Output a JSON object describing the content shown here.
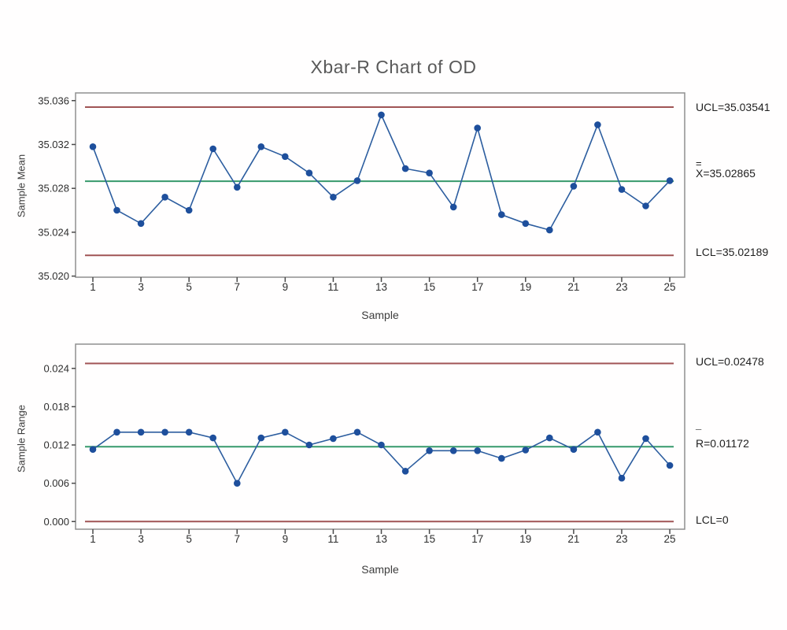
{
  "title": "Xbar-R Chart of OD",
  "colors": {
    "limit_line": "#a05455",
    "center_line": "#37996c",
    "series_line": "#2c5d9f",
    "marker": "#1e4f9c",
    "plot_border": "#8f8f8f",
    "tick": "#4a4a4a",
    "tick_text": "#2e2e2e",
    "title_text": "#595959"
  },
  "chart_data": [
    {
      "type": "line",
      "name": "xbar-chart",
      "ylabel": "Sample Mean",
      "xlabel": "Sample",
      "legend_position": "none",
      "grid": false,
      "samples": [
        1,
        2,
        3,
        4,
        5,
        6,
        7,
        8,
        9,
        10,
        11,
        12,
        13,
        14,
        15,
        16,
        17,
        18,
        19,
        20,
        21,
        22,
        23,
        24,
        25
      ],
      "values": [
        35.0318,
        35.026,
        35.0248,
        35.0272,
        35.026,
        35.0316,
        35.0281,
        35.0318,
        35.0309,
        35.0294,
        35.0272,
        35.0287,
        35.0347,
        35.0298,
        35.0294,
        35.0263,
        35.0335,
        35.0256,
        35.0248,
        35.0242,
        35.0282,
        35.0338,
        35.0279,
        35.0264,
        35.0287
      ],
      "ucl": 35.03541,
      "center": 35.02865,
      "lcl": 35.02189,
      "ylim": [
        35.0199,
        35.0367
      ],
      "xlim": [
        0.28,
        25.62
      ],
      "ytick_values": [
        35.02,
        35.024,
        35.028,
        35.032,
        35.036
      ],
      "ytick_labels": [
        "35.020",
        "35.024",
        "35.028",
        "35.032",
        "35.036"
      ],
      "xticks": [
        1,
        3,
        5,
        7,
        9,
        11,
        13,
        15,
        17,
        19,
        21,
        23,
        25
      ],
      "annotations": {
        "ucl": "UCL=35.03541",
        "center_bar": "=",
        "center": "X=35.02865",
        "lcl": "LCL=35.02189"
      }
    },
    {
      "type": "line",
      "name": "range-chart",
      "ylabel": "Sample Range",
      "xlabel": "Sample",
      "legend_position": "none",
      "grid": false,
      "samples": [
        1,
        2,
        3,
        4,
        5,
        6,
        7,
        8,
        9,
        10,
        11,
        12,
        13,
        14,
        15,
        16,
        17,
        18,
        19,
        20,
        21,
        22,
        23,
        24,
        25
      ],
      "values": [
        0.0113,
        0.014,
        0.014,
        0.014,
        0.014,
        0.0131,
        0.006,
        0.0131,
        0.014,
        0.012,
        0.013,
        0.014,
        0.012,
        0.0079,
        0.0111,
        0.0111,
        0.0111,
        0.0099,
        0.0112,
        0.0131,
        0.0113,
        0.014,
        0.0068,
        0.013,
        0.0088
      ],
      "ucl": 0.02478,
      "center": 0.01172,
      "lcl": 0,
      "ylim": [
        -0.0012,
        0.0278
      ],
      "xlim": [
        0.28,
        25.62
      ],
      "ytick_values": [
        0.0,
        0.006,
        0.012,
        0.018,
        0.024
      ],
      "ytick_labels": [
        "0.000",
        "0.006",
        "0.012",
        "0.018",
        "0.024"
      ],
      "xticks": [
        1,
        3,
        5,
        7,
        9,
        11,
        13,
        15,
        17,
        19,
        21,
        23,
        25
      ],
      "annotations": {
        "ucl": "UCL=0.02478",
        "center_bar": "¯",
        "center": "R=0.01172",
        "lcl": "LCL=0"
      }
    }
  ]
}
